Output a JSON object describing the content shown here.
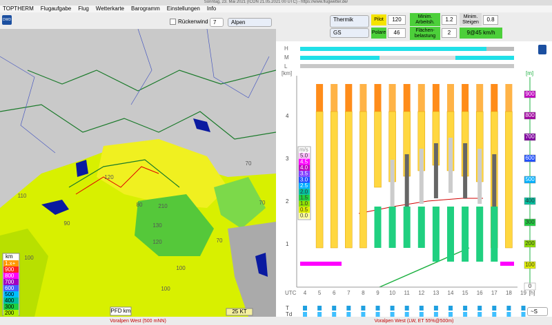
{
  "window_title": "Sonntag, 23. Mai 2021 (ICON 21.05.2021 00 UTC) - https://www.flugwetter.de/",
  "menu": [
    "TOPTHERM",
    "Flugaufgabe",
    "Flug",
    "Wetterkarte",
    "Barogramm",
    "Einstellungen",
    "Info"
  ],
  "logo": "DWD",
  "left_toolbar": {
    "checkbox": "Rückenwind",
    "step": "7",
    "region": "Alpen"
  },
  "controls": {
    "mode": "Thermik",
    "pilot_label": "Pilot",
    "pilot": "120",
    "min_height_label": "Minim. Arbeitsh.",
    "min_height": "1.2",
    "min_climb_label": "Minim. Steigen",
    "min_climb": "0.8",
    "glider": "GS",
    "polar_label": "Polare",
    "polar": "46",
    "load_label": "Flächen-belastung",
    "load": "2",
    "speed": "9@45 km/h"
  },
  "map": {
    "labels": [
      "110",
      "100",
      "90",
      "120",
      "80",
      "210",
      "130",
      "120",
      "70",
      "100",
      "100",
      "70",
      "70"
    ],
    "legend_title": "km",
    "legend_items": [
      "1.x+",
      "900",
      "800",
      "700",
      "600",
      "500",
      "400",
      "300",
      "200"
    ],
    "pfd": "PFD km",
    "wind": "25 KT"
  },
  "meteogram": {
    "levels": [
      "H",
      "M",
      "L"
    ],
    "y_unit": "[km]",
    "y_labels": [
      "1",
      "2",
      "3",
      "4"
    ],
    "x_unit": "UTC",
    "x_labels": [
      "4",
      "5",
      "6",
      "7",
      "8",
      "9",
      "10",
      "11",
      "12",
      "13",
      "14",
      "15",
      "16",
      "17",
      "18",
      "19"
    ],
    "x_suffix": "[h]",
    "right_unit": "[m]",
    "right_labels": [
      "900",
      "800",
      "700",
      "600",
      "500",
      "400",
      "300",
      "200",
      "100",
      "0"
    ],
    "legend_title": "m/s",
    "legend_items": [
      "5.0",
      "4.5",
      "4.0",
      "3.5",
      "3.0",
      "2.5",
      "2.0",
      "1.5",
      "1.0",
      "0.5",
      "0.0"
    ],
    "rows": [
      "T",
      "Td"
    ],
    "display": "~S"
  },
  "status": {
    "left": "Voralpen West (500 mNN)",
    "right": "Voralpen West (LW, ET  55%@500m)"
  }
}
